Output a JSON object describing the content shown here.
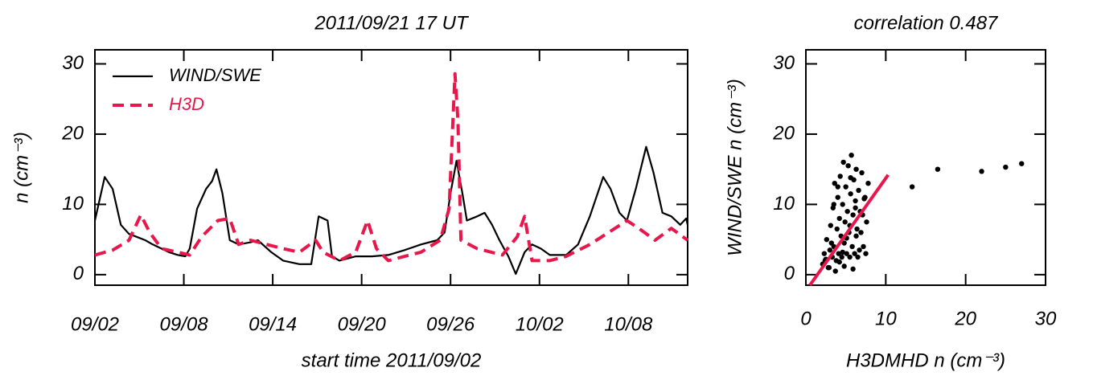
{
  "chart_data": [
    {
      "type": "line",
      "title": "2011/09/21 17 UT",
      "xlabel": "start time 2011/09/02",
      "ylabel": "n (cm⁻³)",
      "xlim": [
        0,
        40
      ],
      "xticks": [
        {
          "value": 0,
          "label": "09/02"
        },
        {
          "value": 6,
          "label": "09/08"
        },
        {
          "value": 12,
          "label": "09/14"
        },
        {
          "value": 18,
          "label": "09/20"
        },
        {
          "value": 24,
          "label": "09/26"
        },
        {
          "value": 30,
          "label": "10/02"
        },
        {
          "value": 36,
          "label": "10/08"
        }
      ],
      "ylim": [
        -1.5,
        32
      ],
      "yticks": [
        0,
        10,
        20,
        30
      ],
      "legend": "upper left",
      "series": [
        {
          "name": "WIND/SWE",
          "color": "#000000",
          "dashed": false,
          "x": [
            0,
            0.66,
            1.2,
            1.75,
            2.3,
            2.8,
            3.4,
            3.9,
            4.5,
            5.0,
            5.6,
            6.1,
            6.4,
            6.9,
            7.5,
            7.9,
            8.2,
            8.6,
            9.1,
            9.7,
            10.5,
            11.0,
            11.9,
            12.7,
            13.8,
            14.6,
            15.1,
            15.7,
            16.0,
            16.5,
            17.6,
            18.7,
            19.8,
            20.9,
            22.0,
            23.1,
            23.6,
            24.0,
            24.4,
            24.8,
            25.1,
            25.8,
            26.3,
            26.8,
            27.3,
            27.9,
            28.4,
            29.0,
            29.5,
            30.1,
            30.7,
            31.8,
            32.6,
            33.4,
            34.3,
            34.8,
            35.4,
            35.9,
            36.5,
            37.2,
            37.7,
            38.3,
            38.9,
            39.5,
            39.9,
            40
          ],
          "values": [
            7.7,
            13.9,
            12.2,
            7.1,
            5.8,
            5.4,
            4.9,
            4.3,
            3.7,
            3.2,
            2.8,
            2.6,
            3.7,
            9.4,
            12.2,
            13.3,
            15.0,
            11.6,
            4.9,
            4.3,
            4.6,
            4.9,
            3.2,
            2.0,
            1.5,
            1.5,
            8.3,
            7.7,
            2.6,
            2.0,
            2.6,
            2.6,
            2.8,
            3.5,
            4.3,
            4.9,
            6.0,
            11.6,
            16.2,
            11.6,
            7.7,
            8.3,
            8.8,
            7.1,
            4.9,
            2.6,
            0.1,
            3.2,
            4.3,
            3.7,
            2.8,
            2.8,
            4.3,
            8.3,
            13.9,
            12.2,
            8.8,
            7.7,
            12.2,
            18.2,
            14.5,
            8.8,
            8.3,
            7.1,
            8.0,
            7.1
          ]
        },
        {
          "name": "H3D",
          "color": "#e8164a",
          "dashed": true,
          "x": [
            0,
            1.2,
            2.3,
            3.1,
            3.7,
            4.5,
            5.6,
            6.4,
            7.2,
            8.3,
            9.1,
            9.7,
            10.5,
            11.6,
            12.7,
            13.8,
            14.9,
            15.4,
            16.5,
            17.6,
            18.4,
            19.0,
            19.8,
            20.9,
            22.0,
            23.3,
            23.9,
            24.3,
            24.5,
            24.7,
            25.8,
            27.5,
            28.5,
            29.0,
            29.5,
            30.7,
            31.8,
            33.4,
            35.1,
            35.9,
            36.7,
            37.8,
            38.9,
            40
          ],
          "values": [
            2.8,
            3.5,
            4.9,
            8.5,
            6.0,
            3.7,
            3.2,
            2.8,
            5.4,
            7.7,
            8.0,
            4.3,
            4.9,
            4.3,
            3.7,
            3.2,
            4.9,
            3.2,
            2.0,
            3.2,
            7.7,
            3.7,
            2.0,
            2.6,
            3.2,
            4.9,
            9.4,
            28.6,
            21.9,
            4.9,
            3.7,
            2.8,
            5.4,
            8.3,
            2.0,
            2.0,
            2.6,
            4.3,
            6.6,
            7.7,
            6.6,
            4.9,
            6.6,
            4.9
          ]
        }
      ]
    },
    {
      "type": "scatter",
      "title": "correlation 0.487",
      "xlabel": "H3DMHD n (cm⁻³)",
      "ylabel": "WIND/SWE n (cm⁻³)",
      "xlim": [
        0,
        30
      ],
      "xticks": [
        0,
        10,
        20,
        30
      ],
      "ylim": [
        -1.5,
        32
      ],
      "yticks": [
        0,
        10,
        20,
        30
      ],
      "color": "#000000",
      "x": [
        2.1,
        2.3,
        2.5,
        2.6,
        2.8,
        3.0,
        3.1,
        3.3,
        3.4,
        3.5,
        3.6,
        3.8,
        3.9,
        4.0,
        4.1,
        4.2,
        4.3,
        4.4,
        4.5,
        4.6,
        4.7,
        4.8,
        4.9,
        5.0,
        5.1,
        5.2,
        5.3,
        5.4,
        5.5,
        5.6,
        5.7,
        5.8,
        5.9,
        6.0,
        6.1,
        6.2,
        6.3,
        6.4,
        6.5,
        6.6,
        6.8,
        7.0,
        7.2,
        7.4,
        7.6,
        7.8,
        2.4,
        2.9,
        3.2,
        3.7,
        4.2,
        4.6,
        5.1,
        5.5,
        5.9,
        6.3,
        6.7,
        7.1,
        7.5,
        3.5,
        4.0,
        4.8,
        5.6,
        6.2,
        6.9,
        7.3,
        13.3,
        16.5,
        22.0,
        25.0,
        27.0
      ],
      "values": [
        1.5,
        3.0,
        2.2,
        5.0,
        1.0,
        3.5,
        7.0,
        2.5,
        9.5,
        4.0,
        13.0,
        2.0,
        6.5,
        11.0,
        3.0,
        8.0,
        14.0,
        5.5,
        2.5,
        10.0,
        16.0,
        4.5,
        7.5,
        12.5,
        3.0,
        9.0,
        15.5,
        6.0,
        2.5,
        11.5,
        17.0,
        4.0,
        8.5,
        13.5,
        3.0,
        10.5,
        15.0,
        6.5,
        2.5,
        12.0,
        9.0,
        14.5,
        4.0,
        11.0,
        7.5,
        13.0,
        2.0,
        1.0,
        4.5,
        0.5,
        1.8,
        3.2,
        5.2,
        7.0,
        0.8,
        5.5,
        3.5,
        8.5,
        3.0,
        10.0,
        12.5,
        1.2,
        13.8,
        9.5,
        6.0,
        10.8,
        12.5,
        15.0,
        14.7,
        15.3,
        15.8
      ],
      "fit": {
        "color": "#e8164a",
        "x": [
          0.5,
          10.3
        ],
        "values": [
          -1.5,
          14.2
        ]
      }
    }
  ]
}
